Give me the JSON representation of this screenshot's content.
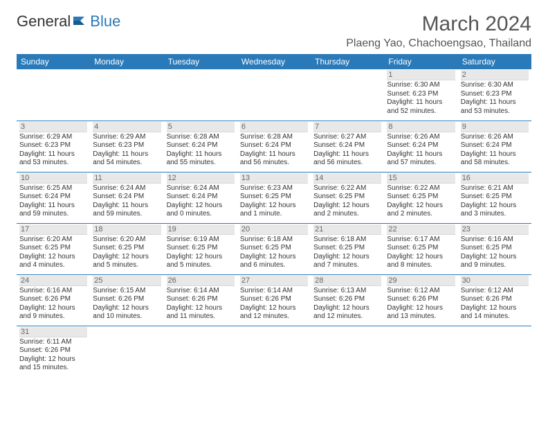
{
  "logo": {
    "text1": "General",
    "text2": "Blue"
  },
  "title": "March 2024",
  "location": "Plaeng Yao, Chachoengsao, Thailand",
  "weekdays": [
    "Sunday",
    "Monday",
    "Tuesday",
    "Wednesday",
    "Thursday",
    "Friday",
    "Saturday"
  ],
  "colors": {
    "header_bg": "#2a7ab9",
    "header_text": "#ffffff",
    "daynum_bg": "#e8e8e8",
    "daynum_text": "#666666",
    "body_text": "#333333",
    "rule": "#2a7ab9"
  },
  "layout": {
    "first_weekday_index": 5,
    "days_in_month": 31
  },
  "days": {
    "1": {
      "sunrise": "6:30 AM",
      "sunset": "6:23 PM",
      "daylight": "11 hours and 52 minutes."
    },
    "2": {
      "sunrise": "6:30 AM",
      "sunset": "6:23 PM",
      "daylight": "11 hours and 53 minutes."
    },
    "3": {
      "sunrise": "6:29 AM",
      "sunset": "6:23 PM",
      "daylight": "11 hours and 53 minutes."
    },
    "4": {
      "sunrise": "6:29 AM",
      "sunset": "6:23 PM",
      "daylight": "11 hours and 54 minutes."
    },
    "5": {
      "sunrise": "6:28 AM",
      "sunset": "6:24 PM",
      "daylight": "11 hours and 55 minutes."
    },
    "6": {
      "sunrise": "6:28 AM",
      "sunset": "6:24 PM",
      "daylight": "11 hours and 56 minutes."
    },
    "7": {
      "sunrise": "6:27 AM",
      "sunset": "6:24 PM",
      "daylight": "11 hours and 56 minutes."
    },
    "8": {
      "sunrise": "6:26 AM",
      "sunset": "6:24 PM",
      "daylight": "11 hours and 57 minutes."
    },
    "9": {
      "sunrise": "6:26 AM",
      "sunset": "6:24 PM",
      "daylight": "11 hours and 58 minutes."
    },
    "10": {
      "sunrise": "6:25 AM",
      "sunset": "6:24 PM",
      "daylight": "11 hours and 59 minutes."
    },
    "11": {
      "sunrise": "6:24 AM",
      "sunset": "6:24 PM",
      "daylight": "11 hours and 59 minutes."
    },
    "12": {
      "sunrise": "6:24 AM",
      "sunset": "6:24 PM",
      "daylight": "12 hours and 0 minutes."
    },
    "13": {
      "sunrise": "6:23 AM",
      "sunset": "6:25 PM",
      "daylight": "12 hours and 1 minute."
    },
    "14": {
      "sunrise": "6:22 AM",
      "sunset": "6:25 PM",
      "daylight": "12 hours and 2 minutes."
    },
    "15": {
      "sunrise": "6:22 AM",
      "sunset": "6:25 PM",
      "daylight": "12 hours and 2 minutes."
    },
    "16": {
      "sunrise": "6:21 AM",
      "sunset": "6:25 PM",
      "daylight": "12 hours and 3 minutes."
    },
    "17": {
      "sunrise": "6:20 AM",
      "sunset": "6:25 PM",
      "daylight": "12 hours and 4 minutes."
    },
    "18": {
      "sunrise": "6:20 AM",
      "sunset": "6:25 PM",
      "daylight": "12 hours and 5 minutes."
    },
    "19": {
      "sunrise": "6:19 AM",
      "sunset": "6:25 PM",
      "daylight": "12 hours and 5 minutes."
    },
    "20": {
      "sunrise": "6:18 AM",
      "sunset": "6:25 PM",
      "daylight": "12 hours and 6 minutes."
    },
    "21": {
      "sunrise": "6:18 AM",
      "sunset": "6:25 PM",
      "daylight": "12 hours and 7 minutes."
    },
    "22": {
      "sunrise": "6:17 AM",
      "sunset": "6:25 PM",
      "daylight": "12 hours and 8 minutes."
    },
    "23": {
      "sunrise": "6:16 AM",
      "sunset": "6:25 PM",
      "daylight": "12 hours and 9 minutes."
    },
    "24": {
      "sunrise": "6:16 AM",
      "sunset": "6:26 PM",
      "daylight": "12 hours and 9 minutes."
    },
    "25": {
      "sunrise": "6:15 AM",
      "sunset": "6:26 PM",
      "daylight": "12 hours and 10 minutes."
    },
    "26": {
      "sunrise": "6:14 AM",
      "sunset": "6:26 PM",
      "daylight": "12 hours and 11 minutes."
    },
    "27": {
      "sunrise": "6:14 AM",
      "sunset": "6:26 PM",
      "daylight": "12 hours and 12 minutes."
    },
    "28": {
      "sunrise": "6:13 AM",
      "sunset": "6:26 PM",
      "daylight": "12 hours and 12 minutes."
    },
    "29": {
      "sunrise": "6:12 AM",
      "sunset": "6:26 PM",
      "daylight": "12 hours and 13 minutes."
    },
    "30": {
      "sunrise": "6:12 AM",
      "sunset": "6:26 PM",
      "daylight": "12 hours and 14 minutes."
    },
    "31": {
      "sunrise": "6:11 AM",
      "sunset": "6:26 PM",
      "daylight": "12 hours and 15 minutes."
    }
  },
  "labels": {
    "sunrise": "Sunrise: ",
    "sunset": "Sunset: ",
    "daylight": "Daylight: "
  }
}
